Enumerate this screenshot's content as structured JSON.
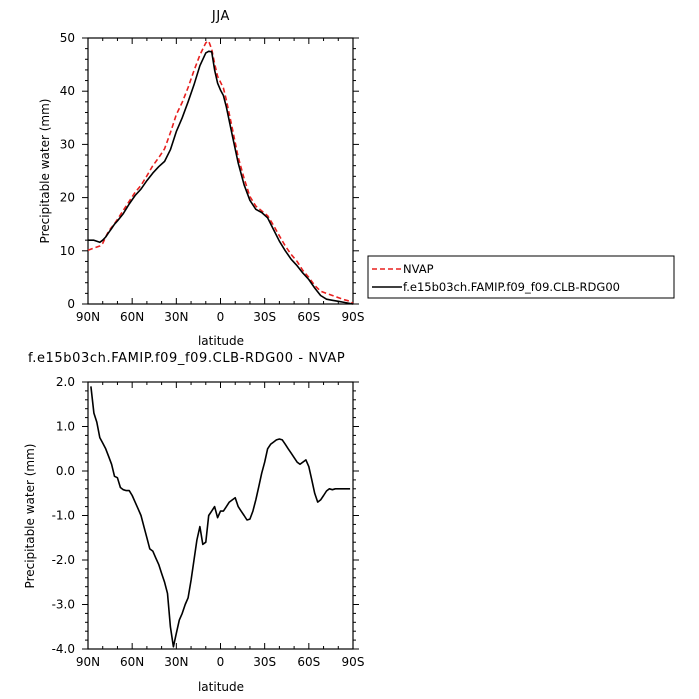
{
  "chart_data": [
    {
      "type": "line",
      "title": "JJA",
      "xlabel": "latitude",
      "ylabel": "Precipitable water (mm)",
      "xlim": [
        90,
        -90
      ],
      "ylim": [
        0,
        50
      ],
      "x_ticks": [
        90,
        60,
        30,
        0,
        -30,
        -60,
        -90
      ],
      "x_tick_labels": [
        "90N",
        "60N",
        "30N",
        "0",
        "30S",
        "60S",
        "90S"
      ],
      "y_ticks": [
        0,
        10,
        20,
        30,
        40,
        50
      ],
      "y_tick_labels": [
        "0",
        "10",
        "20",
        "30",
        "40",
        "50"
      ],
      "grid": false,
      "legend_position": "right, outside plot",
      "series": [
        {
          "name": "NVAP",
          "color": "#e8201f",
          "dash": "dashed",
          "x": [
            90,
            86,
            82,
            80,
            78,
            76,
            74,
            72,
            70,
            66,
            62,
            58,
            54,
            50,
            46,
            42,
            38,
            34,
            30,
            26,
            22,
            18,
            14,
            10,
            8,
            6,
            4,
            2,
            0,
            -2,
            -4,
            -8,
            -12,
            -16,
            -20,
            -24,
            -28,
            -32,
            -36,
            -40,
            -44,
            -48,
            -52,
            -56,
            -60,
            -64,
            -68,
            -72,
            -76,
            -80,
            -84,
            -88,
            -90
          ],
          "values": [
            10.1,
            10.5,
            10.9,
            11.4,
            12.6,
            13.7,
            14.4,
            15.1,
            15.9,
            17.6,
            19.3,
            21.0,
            22.3,
            24.1,
            26.0,
            27.5,
            29.2,
            32.2,
            35.6,
            37.9,
            40.7,
            43.9,
            46.8,
            49.1,
            49.4,
            47.9,
            45.2,
            42.8,
            41.7,
            40.6,
            38.3,
            33.0,
            27.6,
            23.6,
            20.2,
            18.4,
            17.5,
            16.6,
            14.8,
            12.8,
            10.9,
            9.3,
            8.0,
            6.3,
            5.0,
            3.5,
            2.4,
            2.0,
            1.6,
            1.2,
            0.8,
            0.5,
            0.1
          ]
        },
        {
          "name": "f.e15b03ch.FAMIP.f09_f09.CLB-RDG00",
          "color": "#000000",
          "dash": "solid",
          "x": [
            90,
            86,
            82,
            80,
            78,
            76,
            74,
            72,
            70,
            66,
            62,
            58,
            54,
            50,
            46,
            42,
            38,
            34,
            30,
            26,
            22,
            18,
            14,
            10,
            8,
            6,
            4,
            2,
            0,
            -2,
            -4,
            -8,
            -12,
            -16,
            -20,
            -24,
            -28,
            -32,
            -36,
            -40,
            -44,
            -48,
            -52,
            -56,
            -60,
            -64,
            -68,
            -72,
            -76,
            -80,
            -84,
            -88,
            -90
          ],
          "values": [
            12.0,
            12.0,
            11.6,
            12.0,
            12.6,
            13.4,
            14.2,
            15.0,
            15.6,
            17.0,
            18.8,
            20.4,
            21.6,
            23.2,
            24.6,
            25.8,
            26.8,
            29.0,
            32.4,
            35.0,
            38.0,
            41.2,
            44.8,
            47.2,
            47.5,
            47.4,
            44.0,
            41.5,
            40.2,
            39.2,
            37.0,
            31.7,
            26.5,
            22.4,
            19.5,
            17.8,
            17.2,
            16.2,
            14.0,
            11.8,
            10.0,
            8.4,
            7.2,
            5.8,
            4.6,
            3.0,
            1.6,
            0.9,
            0.7,
            0.5,
            0.3,
            0.1,
            0.0
          ]
        }
      ]
    },
    {
      "type": "line",
      "title": "f.e15b03ch.FAMIP.f09_f09.CLB-RDG00 - NVAP",
      "xlabel": "latitude",
      "ylabel": "Precipitable water (mm)",
      "xlim": [
        90,
        -90
      ],
      "ylim": [
        -4.0,
        2.0
      ],
      "x_ticks": [
        90,
        60,
        30,
        0,
        -30,
        -60,
        -90
      ],
      "x_tick_labels": [
        "90N",
        "60N",
        "30N",
        "0",
        "30S",
        "60S",
        "90S"
      ],
      "y_ticks": [
        -4.0,
        -3.0,
        -2.0,
        -1.0,
        0.0,
        1.0,
        2.0
      ],
      "y_tick_labels": [
        "-4.0",
        "-3.0",
        "-2.0",
        "-1.0",
        "0.0",
        "1.0",
        "2.0"
      ],
      "grid": false,
      "series": [
        {
          "color": "#000000",
          "dash": "solid",
          "x": [
            88,
            86,
            84,
            82,
            80,
            78,
            76,
            74,
            72,
            70,
            68,
            66,
            64,
            62,
            60,
            58,
            56,
            54,
            52,
            50,
            48,
            46,
            44,
            42,
            40,
            38,
            36,
            34,
            32,
            30,
            28,
            26,
            24,
            22,
            20,
            18,
            16,
            14,
            12,
            10,
            8,
            6,
            4,
            2,
            0,
            -2,
            -4,
            -6,
            -8,
            -10,
            -12,
            -14,
            -16,
            -18,
            -20,
            -22,
            -24,
            -26,
            -28,
            -30,
            -32,
            -34,
            -36,
            -38,
            -40,
            -42,
            -44,
            -46,
            -48,
            -50,
            -52,
            -54,
            -56,
            -58,
            -60,
            -62,
            -64,
            -66,
            -68,
            -70,
            -72,
            -74,
            -76,
            -78,
            -80,
            -82,
            -84,
            -86,
            -88
          ],
          "values": [
            1.9,
            1.3,
            1.1,
            0.75,
            0.63,
            0.5,
            0.33,
            0.15,
            -0.12,
            -0.15,
            -0.37,
            -0.42,
            -0.44,
            -0.44,
            -0.55,
            -0.7,
            -0.85,
            -1.0,
            -1.25,
            -1.5,
            -1.75,
            -1.8,
            -1.95,
            -2.1,
            -2.3,
            -2.5,
            -2.75,
            -3.5,
            -3.95,
            -3.65,
            -3.35,
            -3.2,
            -3.0,
            -2.85,
            -2.45,
            -2.0,
            -1.55,
            -1.25,
            -1.65,
            -1.6,
            -1.0,
            -0.9,
            -0.8,
            -1.05,
            -0.9,
            -0.9,
            -0.8,
            -0.7,
            -0.65,
            -0.6,
            -0.8,
            -0.9,
            -1.0,
            -1.1,
            -1.08,
            -0.9,
            -0.65,
            -0.35,
            -0.05,
            0.2,
            0.5,
            0.6,
            0.65,
            0.7,
            0.72,
            0.7,
            0.6,
            0.5,
            0.4,
            0.3,
            0.2,
            0.15,
            0.2,
            0.25,
            0.1,
            -0.2,
            -0.5,
            -0.7,
            -0.65,
            -0.55,
            -0.45,
            -0.4,
            -0.42,
            -0.4,
            -0.4,
            -0.4,
            -0.4,
            -0.4,
            -0.4
          ]
        }
      ]
    }
  ]
}
